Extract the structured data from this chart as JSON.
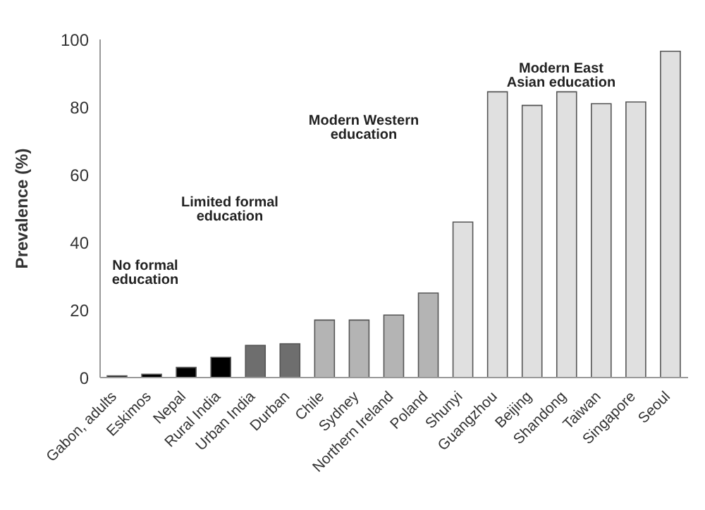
{
  "chart_data": {
    "type": "bar",
    "ylabel": "Prevalence (%)",
    "categories": [
      "Gabon, adults",
      "Eskimos",
      "Nepal",
      "Rural India",
      "Urban India",
      "Durban",
      "Chile",
      "Sydney",
      "Northern Ireland",
      "Poland",
      "Shunyi",
      "Guangzhou",
      "Beijing",
      "Shandong",
      "Taiwan",
      "Singapore",
      "Seoul"
    ],
    "values": [
      0.5,
      1,
      3,
      6,
      9.5,
      10,
      17,
      17,
      18.5,
      25,
      46,
      84.5,
      80.5,
      84.5,
      81,
      81.5,
      96.5
    ],
    "colors": [
      "#000000",
      "#000000",
      "#000000",
      "#000000",
      "#6e6e6e",
      "#6e6e6e",
      "#b4b4b4",
      "#b4b4b4",
      "#b4b4b4",
      "#b4b4b4",
      "#e0e0e0",
      "#e0e0e0",
      "#e0e0e0",
      "#e0e0e0",
      "#e0e0e0",
      "#e0e0e0",
      "#e0e0e0"
    ],
    "ylim": [
      0,
      100
    ],
    "yticks": [
      0,
      20,
      40,
      60,
      80,
      100
    ],
    "grid": false,
    "legend": false,
    "annotations": [
      "No formal education",
      "Limited formal education",
      "Modern Western education",
      "Modern East Asian education"
    ]
  }
}
